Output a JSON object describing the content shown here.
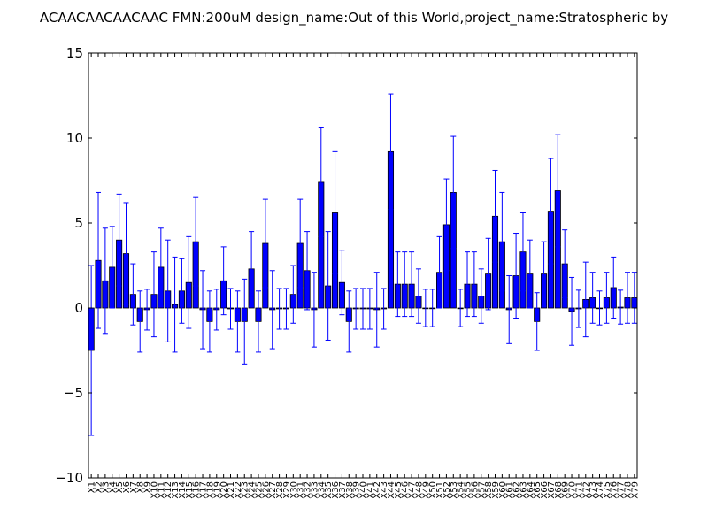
{
  "chart_data": {
    "type": "bar",
    "title": "ACAACAACAACAAC  FMN:200uM  design_name:Out of this World,project_name:Stratospheric by",
    "xlabel": "",
    "ylabel": "",
    "ylim": [
      -10,
      15
    ],
    "yticks": [
      -10,
      -5,
      0,
      5,
      10,
      15
    ],
    "ytick_labels": [
      "−10",
      "−5",
      "0",
      "5",
      "10",
      "15"
    ],
    "grid": false,
    "bar_color": "#0000ff",
    "error_color": "#0000ff",
    "categories": [
      "X1",
      "X2",
      "X3",
      "X4",
      "X5",
      "X6",
      "X7",
      "X8",
      "X9",
      "X10",
      "X11",
      "X12",
      "X13",
      "X14",
      "X15",
      "X16",
      "X17",
      "X18",
      "X19",
      "X20",
      "X21",
      "X22",
      "X23",
      "X24",
      "X25",
      "X26",
      "X27",
      "X28",
      "X29",
      "X30",
      "X31",
      "X32",
      "X33",
      "X34",
      "X35",
      "X36",
      "X37",
      "X38",
      "X39",
      "X40",
      "X41",
      "X42",
      "X43",
      "X44",
      "X45",
      "X46",
      "X47",
      "X48",
      "X49",
      "X50",
      "X51",
      "X52",
      "X53",
      "X54",
      "X55",
      "X56",
      "X57",
      "X58",
      "X59",
      "X60",
      "X61",
      "X62",
      "X63",
      "X64",
      "X65",
      "X66",
      "X67",
      "X68",
      "X69",
      "X70",
      "X71",
      "X72",
      "X73",
      "X74",
      "X75",
      "X76",
      "X77",
      "X78",
      "X79"
    ],
    "values": [
      -2.5,
      2.8,
      1.6,
      2.4,
      4.0,
      3.2,
      0.8,
      -0.8,
      -0.1,
      0.8,
      2.4,
      1.0,
      0.2,
      1.0,
      1.5,
      3.9,
      -0.1,
      -0.8,
      -0.1,
      1.6,
      -0.05,
      -0.8,
      -0.8,
      2.3,
      -0.8,
      3.8,
      -0.1,
      -0.05,
      -0.05,
      0.8,
      3.8,
      2.2,
      -0.1,
      7.4,
      1.3,
      5.6,
      1.5,
      -0.8,
      -0.05,
      -0.05,
      -0.05,
      -0.1,
      -0.05,
      9.2,
      1.4,
      1.4,
      1.4,
      0.7,
      0.0,
      0.0,
      2.1,
      4.9,
      6.8,
      0.0,
      1.4,
      1.4,
      0.7,
      2.0,
      5.4,
      3.9,
      -0.1,
      1.9,
      3.3,
      2.0,
      -0.8,
      2.0,
      5.7,
      6.9,
      2.6,
      -0.2,
      -0.05,
      0.5,
      0.6,
      0.0,
      0.6,
      1.2,
      0.05,
      0.6,
      0.6
    ],
    "errors": [
      5.0,
      4.0,
      3.1,
      2.4,
      2.7,
      3.0,
      1.8,
      1.8,
      1.2,
      2.5,
      2.3,
      3.0,
      2.8,
      1.9,
      2.7,
      2.6,
      2.3,
      1.8,
      1.2,
      2.0,
      1.2,
      1.8,
      2.5,
      2.2,
      1.8,
      2.6,
      2.3,
      1.2,
      1.2,
      1.7,
      2.6,
      2.3,
      2.2,
      3.2,
      3.2,
      3.6,
      1.9,
      1.8,
      1.2,
      1.2,
      1.2,
      2.2,
      1.2,
      3.4,
      1.9,
      1.9,
      1.9,
      1.6,
      1.1,
      1.1,
      2.1,
      2.7,
      3.3,
      1.1,
      1.9,
      1.9,
      1.6,
      2.1,
      2.7,
      2.9,
      2.0,
      2.5,
      2.3,
      2.0,
      1.7,
      1.9,
      3.1,
      3.3,
      2.0,
      2.0,
      1.1,
      2.2,
      1.5,
      1.0,
      1.5,
      1.8,
      1.0,
      1.5,
      1.5
    ]
  }
}
